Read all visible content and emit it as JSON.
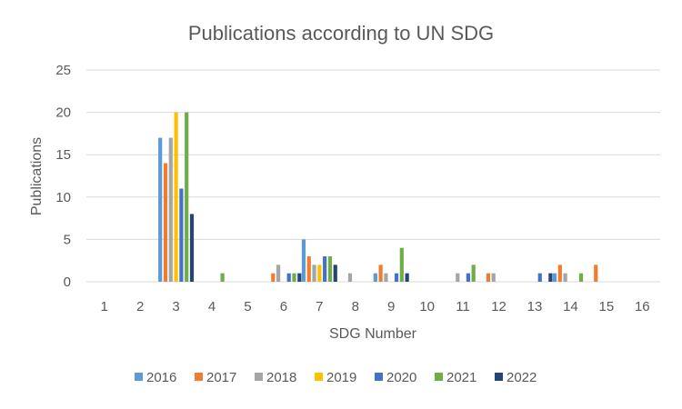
{
  "chart_data": {
    "type": "bar",
    "title": "Publications according to UN SDG",
    "xlabel": "SDG Number",
    "ylabel": "Publications",
    "categories": [
      "1",
      "2",
      "3",
      "4",
      "5",
      "6",
      "7",
      "8",
      "9",
      "10",
      "11",
      "12",
      "13",
      "14",
      "15",
      "16"
    ],
    "ylim": [
      0,
      25
    ],
    "yticks": [
      "0",
      "5",
      "10",
      "15",
      "20",
      "25"
    ],
    "grid": true,
    "legend_position": "bottom",
    "series": [
      {
        "name": "2016",
        "color": "#5b9bd5",
        "values": [
          0,
          0,
          17,
          0,
          0,
          0,
          5,
          0,
          1,
          0,
          0,
          0,
          0,
          1,
          0,
          0
        ]
      },
      {
        "name": "2017",
        "color": "#ed7d31",
        "values": [
          0,
          0,
          14,
          0,
          0,
          1,
          3,
          0,
          2,
          0,
          0,
          1,
          0,
          2,
          2,
          0
        ]
      },
      {
        "name": "2018",
        "color": "#a5a5a5",
        "values": [
          0,
          0,
          17,
          0,
          0,
          2,
          2,
          1,
          1,
          0,
          1,
          1,
          0,
          1,
          0,
          0
        ]
      },
      {
        "name": "2019",
        "color": "#ffc000",
        "values": [
          0,
          0,
          20,
          0,
          0,
          0,
          2,
          0,
          0,
          0,
          0,
          0,
          0,
          0,
          0,
          0
        ]
      },
      {
        "name": "2020",
        "color": "#4472c4",
        "values": [
          0,
          0,
          11,
          0,
          0,
          1,
          3,
          0,
          1,
          0,
          1,
          0,
          1,
          0,
          0,
          0
        ]
      },
      {
        "name": "2021",
        "color": "#70ad47",
        "values": [
          0,
          0,
          20,
          1,
          0,
          1,
          3,
          0,
          4,
          0,
          2,
          0,
          0,
          1,
          0,
          0
        ]
      },
      {
        "name": "2022",
        "color": "#264478",
        "values": [
          0,
          0,
          8,
          0,
          0,
          1,
          2,
          0,
          1,
          0,
          0,
          0,
          1,
          0,
          0,
          0
        ]
      }
    ]
  }
}
